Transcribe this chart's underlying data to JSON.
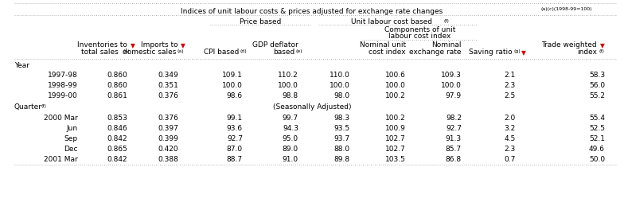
{
  "title": "Indices of unit labour costs & prices adjusted for exchange rate changes",
  "title_super": "(a)(c)(1998-99=100)",
  "price_based": "Price based",
  "ulc_based": "Unit labour cost based",
  "ulc_based_super": "(f)",
  "components": "Components of unit",
  "components2": "labour cost index",
  "col_inv_line1": "Inventories to",
  "col_inv_line2": "total sales ",
  "col_inv_super": "(a)",
  "col_imp_line1": "Imports to",
  "col_imp_line2": "domestic sales",
  "col_imp_super": "(a)",
  "col_cpi_line1": "CPI based",
  "col_cpi_super": "(d)",
  "col_gdp_line1": "GDP deflator",
  "col_gdp_line2": "based",
  "col_gdp_super": "(e)",
  "col_nom_unit_line1": "Nominal unit",
  "col_nom_unit_line2": "cost index",
  "col_nom_exch_line1": "Nominal",
  "col_nom_exch_line2": "exchange rate",
  "col_saving_line1": "Saving ratio",
  "col_saving_super": "(g)",
  "col_trade_line1": "Trade weighted",
  "col_trade_line2": "index",
  "col_trade_super": "(f)",
  "section_year": "Year",
  "section_quarter": "Quarter",
  "section_quarter_super": "(f)",
  "seasonally_adjusted": "(Seasonally Adjusted)",
  "rows_year": [
    [
      "1997-98",
      "0.860",
      "0.349",
      "109.1",
      "110.2",
      "110.0",
      "100.6",
      "109.3",
      "2.1",
      "58.3"
    ],
    [
      "1998-99",
      "0.860",
      "0.351",
      "100.0",
      "100.0",
      "100.0",
      "100.0",
      "100.0",
      "2.3",
      "56.0"
    ],
    [
      "1999-00",
      "0.861",
      "0.376",
      "98.6",
      "98.8",
      "98.0",
      "100.2",
      "97.9",
      "2.5",
      "55.2"
    ]
  ],
  "rows_quarter": [
    [
      "2000 Mar",
      "0.853",
      "0.376",
      "99.1",
      "99.7",
      "98.3",
      "100.2",
      "98.2",
      "2.0",
      "55.4"
    ],
    [
      "Jun",
      "0.846",
      "0.397",
      "93.6",
      "94.3",
      "93.5",
      "100.9",
      "92.7",
      "3.2",
      "52.5"
    ],
    [
      "Sep",
      "0.842",
      "0.399",
      "92.7",
      "95.0",
      "93.7",
      "102.7",
      "91.3",
      "4.5",
      "52.1"
    ],
    [
      "Dec",
      "0.865",
      "0.420",
      "87.0",
      "89.0",
      "88.0",
      "102.7",
      "85.7",
      "2.3",
      "49.6"
    ],
    [
      "2001 Mar",
      "0.842",
      "0.388",
      "88.7",
      "91.0",
      "89.8",
      "103.5",
      "86.8",
      "0.7",
      "50.0"
    ]
  ],
  "bg_color": "#ffffff",
  "text_color": "#000000",
  "line_color": "#999999",
  "fs": 6.5,
  "fs_super": 4.5,
  "fs_arrow": 5.5
}
